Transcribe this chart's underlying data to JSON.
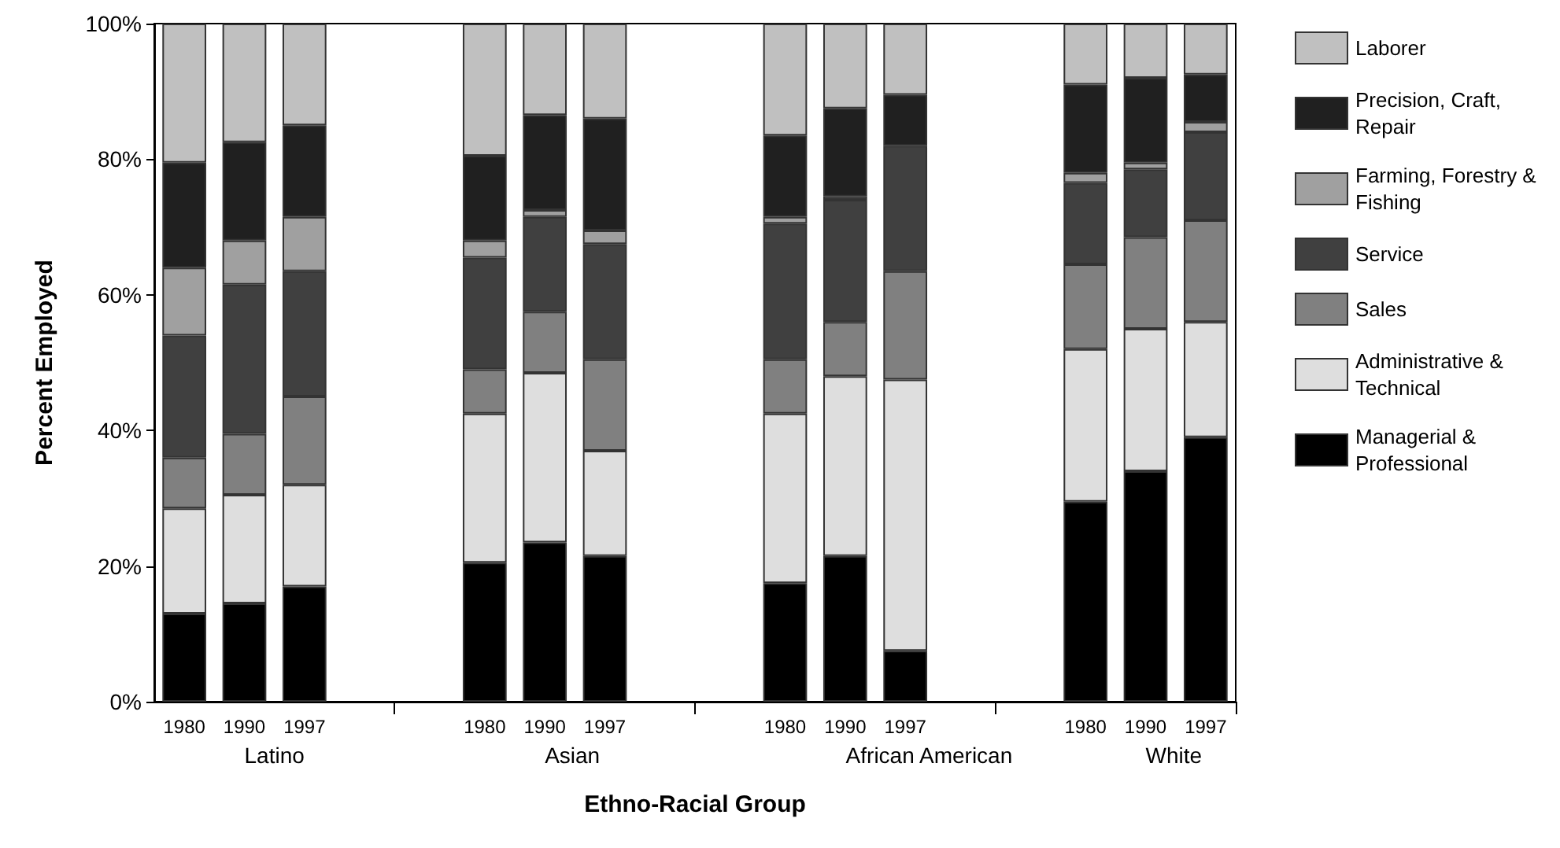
{
  "chart_data": {
    "type": "bar",
    "stacked": true,
    "xlabel": "Ethno-Racial Group",
    "ylabel": "Percent Employed",
    "categories": [
      "1980",
      "1990",
      "1997",
      null,
      null,
      "1980",
      "1990",
      "1997",
      null,
      null,
      "1980",
      "1990",
      "1997",
      null,
      null,
      "1980",
      "1990",
      "1997"
    ],
    "annotations": [
      "Latino",
      "Asian",
      "African American",
      "White"
    ],
    "ylim": [
      0,
      100
    ],
    "yticks": [
      {
        "value": 0,
        "label": "0%"
      },
      {
        "value": 20,
        "label": "20%"
      },
      {
        "value": 40,
        "label": "40%"
      },
      {
        "value": 60,
        "label": "60%"
      },
      {
        "value": 80,
        "label": "80%"
      },
      {
        "value": 100,
        "label": "100%"
      }
    ],
    "grid": false,
    "legend": "right",
    "series": [
      {
        "name": "Managerial & Professional",
        "color": "#000000",
        "values": [
          13,
          14.5,
          17,
          null,
          null,
          20.5,
          23.5,
          21.5,
          null,
          null,
          17.5,
          21.5,
          7.5,
          null,
          null,
          29.5,
          34,
          39
        ]
      },
      {
        "name": "Administrative & Technical",
        "color": "#dedede",
        "values": [
          15.5,
          16,
          15,
          null,
          null,
          22,
          25,
          15.5,
          null,
          null,
          25,
          26.5,
          40,
          null,
          null,
          22.5,
          21,
          17
        ]
      },
      {
        "name": "Sales",
        "color": "#808080",
        "values": [
          7.5,
          9,
          13,
          null,
          null,
          6.5,
          9,
          13.5,
          null,
          null,
          8,
          8,
          16,
          null,
          null,
          12.5,
          13.5,
          15
        ]
      },
      {
        "name": "Service",
        "color": "#404040",
        "values": [
          18,
          22,
          18.5,
          null,
          null,
          16.5,
          14,
          17,
          null,
          null,
          20,
          18,
          18.5,
          null,
          null,
          12,
          10,
          13
        ]
      },
      {
        "name": "Farming, Forestry & Fishing",
        "color": "#a0a0a0",
        "values": [
          10,
          6.5,
          8,
          null,
          null,
          2.5,
          1,
          2,
          null,
          null,
          1,
          0.5,
          null,
          null,
          null,
          1.5,
          1,
          1.5
        ]
      },
      {
        "name": "Precision, Craft, Repair",
        "color": "#202020",
        "values": [
          15.5,
          14.5,
          13.5,
          null,
          null,
          12.5,
          14,
          16.5,
          null,
          null,
          12,
          13,
          7.5,
          null,
          null,
          13,
          12.5,
          7
        ]
      },
      {
        "name": "Laborer",
        "color": "#c0c0c0",
        "values": [
          20.5,
          17.5,
          15,
          null,
          null,
          19.5,
          13.5,
          14,
          null,
          null,
          16.5,
          12.5,
          10.5,
          null,
          null,
          9,
          8,
          7.5
        ]
      }
    ]
  }
}
